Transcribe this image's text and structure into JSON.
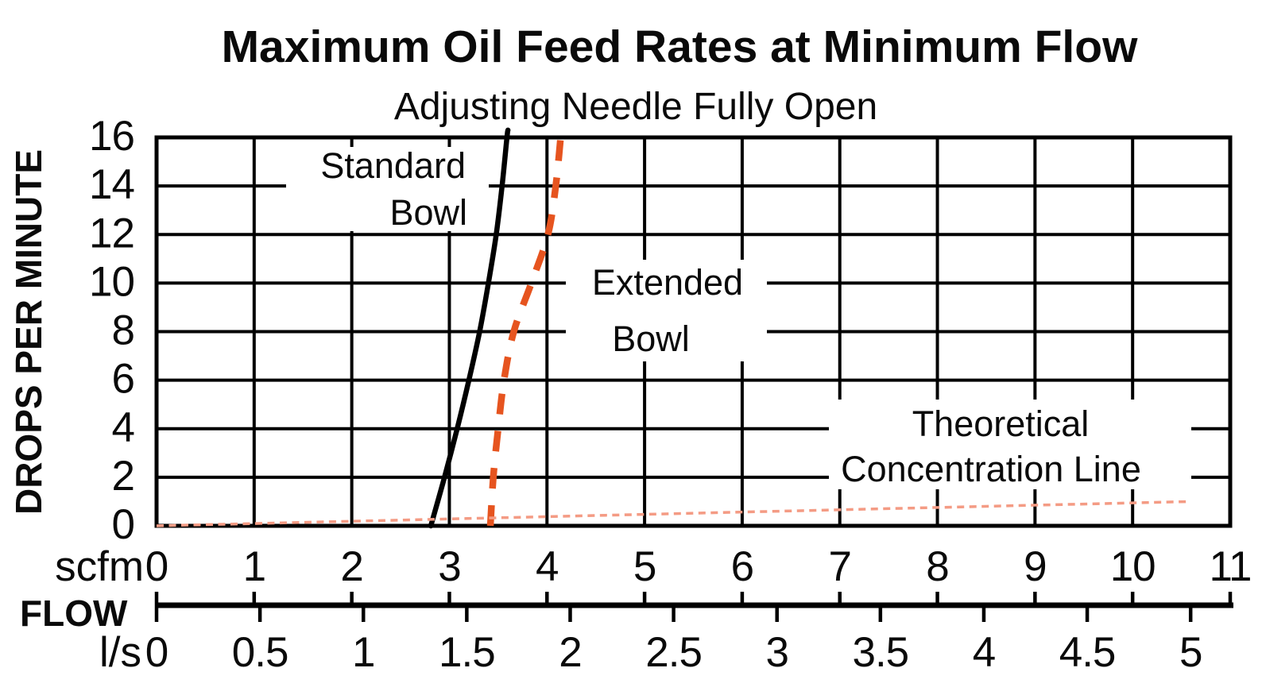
{
  "title": "Maximum Oil Feed Rates at Minimum Flow",
  "subtitle": "Adjusting Needle Fully Open",
  "y_axis": {
    "label": "DROPS PER MINUTE",
    "ticks": [
      0,
      2,
      4,
      6,
      8,
      10,
      12,
      14,
      16
    ],
    "min": 0,
    "max": 16
  },
  "x_axis_scfm": {
    "unit": "scfm",
    "ticks": [
      0,
      1,
      2,
      3,
      4,
      5,
      6,
      7,
      8,
      9,
      10,
      11
    ],
    "min": 0,
    "max": 11
  },
  "x_axis_ls": {
    "unit": "l/s",
    "ticks": [
      0,
      0.5,
      1,
      1.5,
      2,
      2.5,
      3,
      3.5,
      4,
      4.5,
      5
    ],
    "scfm_per_ls": 2.1189
  },
  "flow_axis_label": "FLOW",
  "annotations": {
    "standard_bowl": {
      "line1": "Standard",
      "line2": "Bowl"
    },
    "extended_bowl": {
      "line1": "Extended",
      "line2": "Bowl"
    },
    "theoretical": {
      "line1": "Theoretical",
      "line2": "Concentration Line"
    }
  },
  "colors": {
    "grid_black": "#000000",
    "standard_bowl_line": "#000000",
    "extended_bowl_line": "#E6541F",
    "theoretical_line": "#F49B84"
  },
  "chart_data": {
    "type": "line",
    "title": "Maximum Oil Feed Rates at Minimum Flow",
    "subtitle": "Adjusting Needle Fully Open",
    "xlabel": "FLOW (scfm top scale, l/s bottom scale)",
    "ylabel": "DROPS PER MINUTE",
    "x_range_scfm": [
      0,
      11
    ],
    "x_range_ls": [
      0,
      5
    ],
    "y_range": [
      0,
      16
    ],
    "grid": true,
    "series": [
      {
        "name": "Standard Bowl",
        "style": "solid",
        "color": "#000000",
        "points_scfm_dpm": [
          [
            2.81,
            0
          ],
          [
            2.95,
            2
          ],
          [
            3.08,
            4
          ],
          [
            3.2,
            6
          ],
          [
            3.31,
            8
          ],
          [
            3.4,
            10
          ],
          [
            3.48,
            12
          ],
          [
            3.54,
            14
          ],
          [
            3.59,
            16
          ],
          [
            3.6,
            16.3
          ]
        ]
      },
      {
        "name": "Extended Bowl",
        "style": "dashed",
        "color": "#E6541F",
        "points_scfm_dpm": [
          [
            3.42,
            0
          ],
          [
            3.45,
            2
          ],
          [
            3.5,
            4
          ],
          [
            3.56,
            6
          ],
          [
            3.66,
            8
          ],
          [
            3.84,
            10
          ],
          [
            4.01,
            12
          ],
          [
            4.09,
            14
          ],
          [
            4.14,
            16
          ],
          [
            4.145,
            16.25
          ]
        ]
      },
      {
        "name": "Theoretical Concentration Line",
        "style": "dotted",
        "color": "#F49B84",
        "points_scfm_dpm": [
          [
            0,
            0
          ],
          [
            10.59,
            1.0
          ]
        ]
      }
    ]
  }
}
